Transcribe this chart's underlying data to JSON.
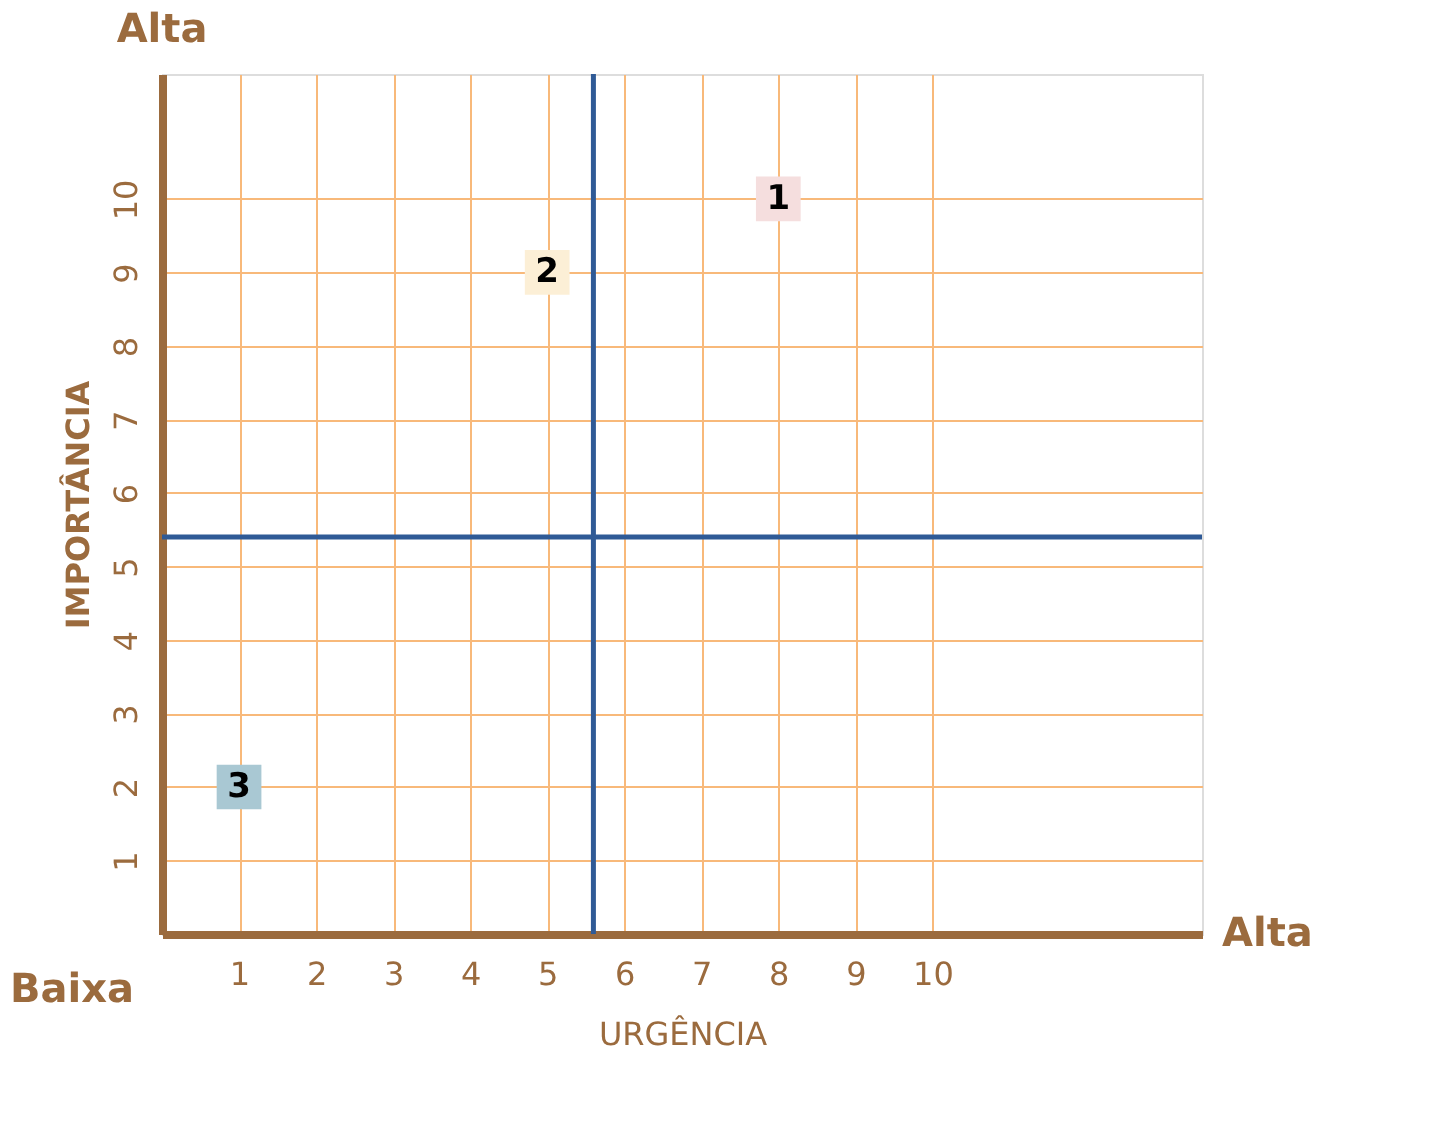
{
  "chart_data": {
    "type": "scatter",
    "xlabel": "URGÊNCIA",
    "ylabel": "IMPORTÂNCIA",
    "annotations": [
      "Alta",
      "Baixa",
      "Alta"
    ],
    "series": [
      {
        "name": "1",
        "color": "#f5dede",
        "x": [
          8
        ],
        "values": [
          10
        ]
      },
      {
        "name": "2",
        "color": "#fcefd6",
        "x": [
          5
        ],
        "values": [
          9
        ]
      },
      {
        "name": "3",
        "color": "#a9c8d3",
        "x": [
          1
        ],
        "values": [
          2
        ]
      }
    ],
    "xlim": [
      0,
      13.5
    ],
    "ylim": [
      0,
      11.7
    ],
    "xticks": [
      1,
      2,
      3,
      4,
      5,
      6,
      7,
      8,
      9,
      10
    ],
    "yticks": [
      1,
      2,
      3,
      4,
      5,
      6,
      7,
      8,
      9,
      10
    ],
    "grid": true,
    "marker": "square",
    "ref_lines": [
      {
        "axis": "x",
        "value": 5.6,
        "color": "#2f5a96"
      },
      {
        "axis": "y",
        "value": 5.4,
        "color": "#2f5a96"
      }
    ]
  }
}
